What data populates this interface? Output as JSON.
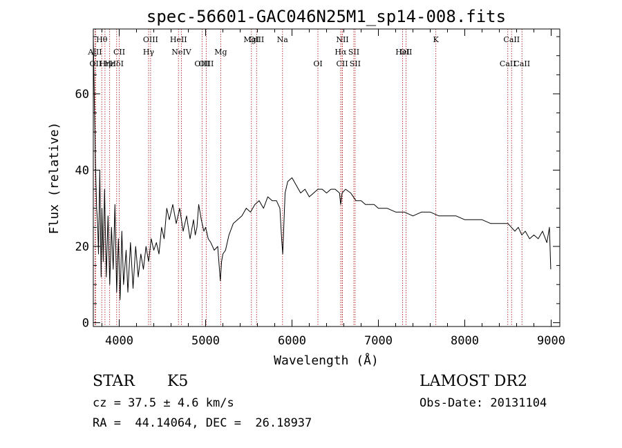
{
  "chart_data": {
    "type": "line",
    "title": "spec-56601-GAC046N25M1_sp14-008.fits",
    "xlabel": "Wavelength (Å)",
    "ylabel": "Flux (relative)",
    "xlim": [
      3700,
      9100
    ],
    "ylim": [
      -1,
      77
    ],
    "x_ticks": [
      4000,
      5000,
      6000,
      7000,
      8000,
      9000
    ],
    "y_ticks": [
      0,
      20,
      40,
      60
    ],
    "series": [
      {
        "color": "#000000",
        "x": [
          3700,
          3712,
          3725,
          3738,
          3750,
          3760,
          3775,
          3790,
          3800,
          3815,
          3830,
          3850,
          3870,
          3890,
          3910,
          3930,
          3950,
          3970,
          3990,
          4010,
          4030,
          4050,
          4080,
          4100,
          4130,
          4160,
          4190,
          4220,
          4250,
          4280,
          4310,
          4340,
          4370,
          4400,
          4430,
          4460,
          4490,
          4520,
          4550,
          4580,
          4620,
          4660,
          4700,
          4740,
          4780,
          4820,
          4860,
          4880,
          4900,
          4920,
          4950,
          4980,
          5000,
          5030,
          5060,
          5100,
          5140,
          5170,
          5185,
          5200,
          5230,
          5270,
          5320,
          5370,
          5420,
          5470,
          5520,
          5570,
          5620,
          5670,
          5720,
          5770,
          5820,
          5860,
          5880,
          5893,
          5905,
          5920,
          5950,
          6000,
          6050,
          6100,
          6150,
          6200,
          6250,
          6300,
          6350,
          6400,
          6450,
          6500,
          6550,
          6563,
          6580,
          6620,
          6680,
          6740,
          6800,
          6850,
          6900,
          6950,
          7000,
          7100,
          7200,
          7300,
          7400,
          7500,
          7600,
          7700,
          7800,
          7900,
          8000,
          8100,
          8200,
          8300,
          8400,
          8500,
          8540,
          8580,
          8620,
          8660,
          8700,
          8750,
          8800,
          8850,
          8900,
          8950,
          8980,
          8995
        ],
        "y": [
          75,
          58,
          42,
          30,
          26,
          18,
          40,
          12,
          30,
          16,
          35,
          12,
          28,
          10,
          25,
          14,
          31,
          8,
          22,
          6,
          24,
          10,
          19,
          8,
          21,
          9,
          20,
          12,
          18,
          14,
          20,
          16,
          22,
          19,
          21,
          18,
          25,
          22,
          30,
          27,
          31,
          26,
          30,
          24,
          28,
          22,
          27,
          23,
          25,
          31,
          27,
          24,
          25,
          22,
          21,
          19,
          20,
          11,
          16,
          18,
          19,
          23,
          26,
          27,
          28,
          30,
          29,
          31,
          32,
          30,
          33,
          32,
          32,
          30,
          22,
          18,
          25,
          34,
          37,
          38,
          36,
          34,
          35,
          33,
          34,
          35,
          35,
          34,
          35,
          35,
          34,
          31,
          34,
          35,
          34,
          32,
          32,
          31,
          31,
          31,
          30,
          30,
          29,
          29,
          28,
          29,
          29,
          28,
          28,
          28,
          27,
          27,
          27,
          26,
          26,
          26,
          25,
          24,
          25,
          23,
          24,
          22,
          23,
          22,
          24,
          21,
          25,
          14
        ]
      }
    ],
    "lines": [
      {
        "label": "AlII",
        "x": 3720,
        "row": 2
      },
      {
        "label": "OII",
        "x": 3727,
        "row": 3
      },
      {
        "label": "Hθ",
        "x": 3798,
        "row": 1
      },
      {
        "label": "Hη",
        "x": 3835,
        "row": 3
      },
      {
        "label": "Hε",
        "x": 3889,
        "row": 3
      },
      {
        "label": "HδI",
        "x": 3970,
        "row": 3
      },
      {
        "label": "CII",
        "x": 4000,
        "row": 2
      },
      {
        "label": "OIII",
        "x": 4363,
        "row": 1
      },
      {
        "label": "Hγ",
        "x": 4340,
        "row": 2
      },
      {
        "label": "HeII",
        "x": 4686,
        "row": 1
      },
      {
        "label": "NeIV",
        "x": 4720,
        "row": 2
      },
      {
        "label": "OIII",
        "x": 4959,
        "row": 3
      },
      {
        "label": "OIII",
        "x": 5007,
        "row": 3
      },
      {
        "label": "Mg",
        "x": 5175,
        "row": 2
      },
      {
        "label": "MgI",
        "x": 5530,
        "row": 1
      },
      {
        "label": "OIII",
        "x": 5590,
        "row": 1
      },
      {
        "label": "Na",
        "x": 5890,
        "row": 1
      },
      {
        "label": "OI",
        "x": 6300,
        "row": 3
      },
      {
        "label": "NII",
        "x": 6584,
        "row": 1
      },
      {
        "label": "Hα",
        "x": 6563,
        "row": 2
      },
      {
        "label": "SII",
        "x": 6716,
        "row": 2
      },
      {
        "label": "SII",
        "x": 6731,
        "row": 3
      },
      {
        "label": "CII",
        "x": 6580,
        "row": 3
      },
      {
        "label": "OII",
        "x": 7320,
        "row": 2
      },
      {
        "label": "K",
        "x": 7665,
        "row": 1
      },
      {
        "label": "HeI",
        "x": 7280,
        "row": 2
      },
      {
        "label": "CaII",
        "x": 8542,
        "row": 1
      },
      {
        "label": "CaII",
        "x": 8498,
        "row": 3
      },
      {
        "label": "CaII",
        "x": 8662,
        "row": 3
      }
    ]
  },
  "footer": {
    "object_type": "STAR",
    "subclass": "K5",
    "release": "LAMOST DR2",
    "cz": "cz = 37.5 ± 4.6 km/s",
    "obs_date": "Obs-Date: 20131104",
    "radec": "RA =  44.14064, DEC =  26.18937"
  }
}
